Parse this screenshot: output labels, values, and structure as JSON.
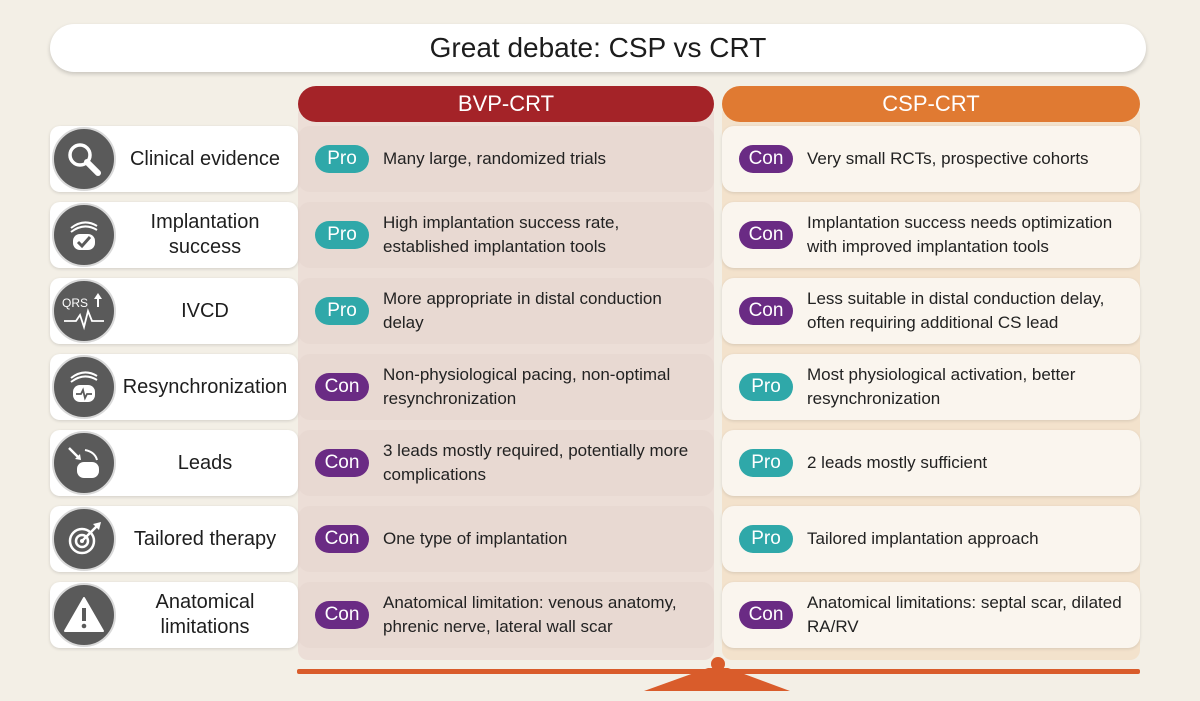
{
  "title": "Great debate: CSP vs CRT",
  "columns": {
    "left": "BVP-CRT",
    "right": "CSP-CRT"
  },
  "colors": {
    "left_header": "#a42328",
    "right_header": "#e07a32",
    "pro": "#2fa8a9",
    "con": "#6a2b84",
    "scale": "#d95c2b"
  },
  "rows": [
    {
      "label_lines": [
        "Clinical evidence"
      ],
      "icon": "magnifier-icon",
      "left": {
        "badge": "Pro",
        "text": "Many large, randomized trials"
      },
      "right": {
        "badge": "Con",
        "text": "Very small RCTs, prospective cohorts"
      }
    },
    {
      "label_lines": [
        "Implantation",
        "success"
      ],
      "icon": "pacemaker-check-icon",
      "left": {
        "badge": "Pro",
        "text": "High implantation success rate, established implantation tools"
      },
      "right": {
        "badge": "Con",
        "text": "Implantation success needs optimization with improved implantation tools"
      }
    },
    {
      "label_lines": [
        "IVCD"
      ],
      "icon": "qrs-icon",
      "icon_text": "QRS",
      "left": {
        "badge": "Pro",
        "text": "More appropriate in distal conduction delay"
      },
      "right": {
        "badge": "Con",
        "text": "Less suitable in distal conduction delay, often requiring additional CS lead"
      }
    },
    {
      "label_lines": [
        "Resynchronization"
      ],
      "icon": "pacemaker-ecg-icon",
      "left": {
        "badge": "Con",
        "text": "Non-physiological pacing, non-optimal resynchronization"
      },
      "right": {
        "badge": "Pro",
        "text": "Most physiological activation, better resynchronization"
      }
    },
    {
      "label_lines": [
        "Leads"
      ],
      "icon": "pacemaker-leads-icon",
      "left": {
        "badge": "Con",
        "text": "3 leads mostly required, potentially more complications"
      },
      "right": {
        "badge": "Pro",
        "text": "2 leads mostly sufficient"
      }
    },
    {
      "label_lines": [
        "Tailored therapy"
      ],
      "icon": "target-icon",
      "left": {
        "badge": "Con",
        "text": "One type of implantation"
      },
      "right": {
        "badge": "Pro",
        "text": "Tailored implantation approach"
      }
    },
    {
      "label_lines": [
        "Anatomical",
        "limitations"
      ],
      "icon": "warning-icon",
      "left": {
        "badge": "Con",
        "text": "Anatomical limitation: venous anatomy, phrenic nerve, lateral wall scar"
      },
      "right": {
        "badge": "Con",
        "text": "Anatomical limitations: septal scar, dilated RA/RV"
      }
    }
  ]
}
